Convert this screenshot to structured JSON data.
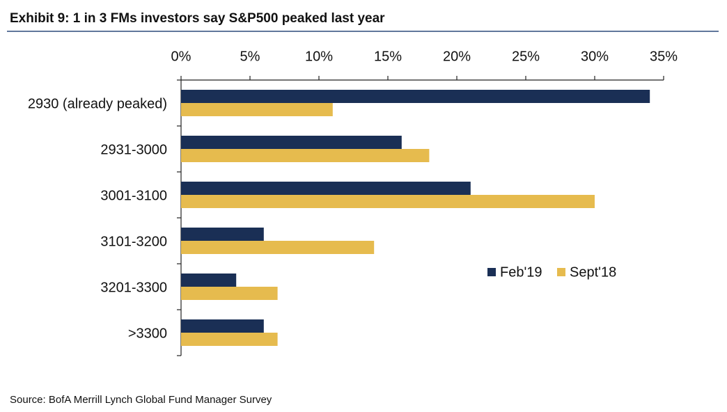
{
  "chart_data": {
    "type": "hbar",
    "title": "Exhibit 9: 1 in 3 FMs investors say S&P500 peaked last year",
    "source": "Source: BofA Merrill Lynch Global Fund Manager Survey",
    "categories": [
      "2930 (already peaked)",
      "2931-3000",
      "3001-3100",
      "3101-3200",
      "3201-3300",
      ">3300"
    ],
    "series": [
      {
        "name": "Feb'19",
        "color": "#1a2f55",
        "values": [
          34,
          16,
          21,
          6,
          4,
          6
        ]
      },
      {
        "name": "Sept'18",
        "color": "#e6bb4e",
        "values": [
          11,
          18,
          30,
          14,
          7,
          7
        ]
      }
    ],
    "xlim": [
      0,
      35
    ],
    "xticks": [
      {
        "value": 0,
        "label": "0%"
      },
      {
        "value": 5,
        "label": "5%"
      },
      {
        "value": 10,
        "label": "10%"
      },
      {
        "value": 15,
        "label": "15%"
      },
      {
        "value": 20,
        "label": "20%"
      },
      {
        "value": 25,
        "label": "25%"
      },
      {
        "value": 30,
        "label": "30%"
      },
      {
        "value": 35,
        "label": "35%"
      }
    ],
    "grid": false
  }
}
